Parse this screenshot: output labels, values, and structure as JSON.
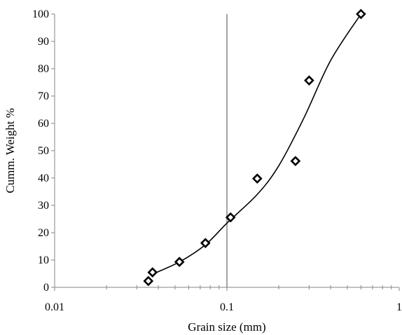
{
  "chart_data": {
    "type": "scatter",
    "title": "",
    "xlabel": "Grain size (mm)",
    "ylabel": "Cumm. Weight %",
    "x_scale": "log",
    "xlim": [
      0.01,
      1
    ],
    "ylim": [
      0,
      100
    ],
    "x_ticks": [
      {
        "value": 0.01,
        "label": "0.01"
      },
      {
        "value": 0.1,
        "label": "0.1"
      },
      {
        "value": 1,
        "label": "1"
      }
    ],
    "y_ticks": [
      {
        "value": 0,
        "label": "0"
      },
      {
        "value": 10,
        "label": "10"
      },
      {
        "value": 20,
        "label": "20"
      },
      {
        "value": 30,
        "label": "30"
      },
      {
        "value": 40,
        "label": "40"
      },
      {
        "value": 50,
        "label": "50"
      },
      {
        "value": 60,
        "label": "60"
      },
      {
        "value": 70,
        "label": "70"
      },
      {
        "value": 80,
        "label": "80"
      },
      {
        "value": 90,
        "label": "90"
      },
      {
        "value": 100,
        "label": "100"
      }
    ],
    "grid": false,
    "reference_lines": [
      {
        "axis": "x",
        "value": 0.1
      }
    ],
    "legend": "none",
    "series": [
      {
        "marker": "diamond",
        "points": [
          {
            "x": 0.035,
            "y": 2.3
          },
          {
            "x": 0.037,
            "y": 5.5
          },
          {
            "x": 0.053,
            "y": 9.3
          },
          {
            "x": 0.075,
            "y": 16.2
          },
          {
            "x": 0.105,
            "y": 25.6
          },
          {
            "x": 0.15,
            "y": 39.8
          },
          {
            "x": 0.25,
            "y": 46.2
          },
          {
            "x": 0.3,
            "y": 75.7
          },
          {
            "x": 0.6,
            "y": 100
          }
        ]
      }
    ],
    "trendline": {
      "style": "smooth",
      "points": [
        {
          "x": 0.036,
          "y": 4.5
        },
        {
          "x": 0.053,
          "y": 9.3
        },
        {
          "x": 0.075,
          "y": 15.6
        },
        {
          "x": 0.1,
          "y": 23.5
        },
        {
          "x": 0.15,
          "y": 34.0
        },
        {
          "x": 0.2,
          "y": 44.5
        },
        {
          "x": 0.28,
          "y": 62.0
        },
        {
          "x": 0.4,
          "y": 83.0
        },
        {
          "x": 0.6,
          "y": 100
        }
      ]
    },
    "colors": {
      "marker": "#000000",
      "line": "#000000",
      "axis": "#868686",
      "reference_line": "#868686"
    }
  }
}
